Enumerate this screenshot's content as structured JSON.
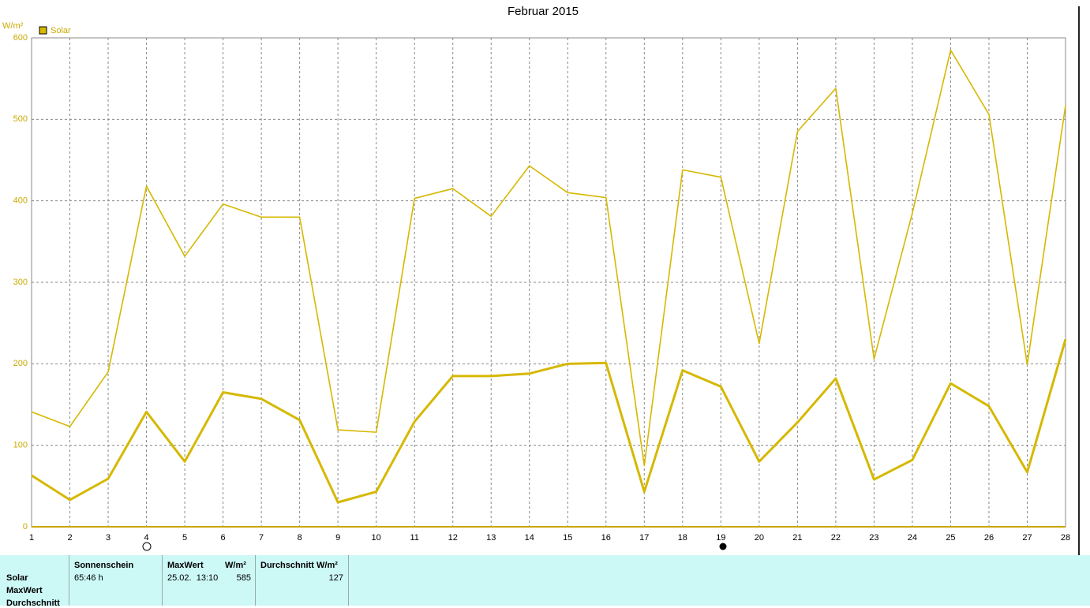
{
  "chart_data": {
    "type": "line",
    "title": "Februar 2015",
    "y_unit": "W/m²",
    "x": [
      1,
      2,
      3,
      4,
      5,
      6,
      7,
      8,
      9,
      10,
      11,
      12,
      13,
      14,
      15,
      16,
      17,
      18,
      19,
      20,
      21,
      22,
      23,
      24,
      25,
      26,
      27,
      28
    ],
    "xlim": [
      1,
      28
    ],
    "xticks": [
      1,
      2,
      3,
      4,
      5,
      6,
      7,
      8,
      9,
      10,
      11,
      12,
      13,
      14,
      15,
      16,
      17,
      18,
      19,
      20,
      21,
      22,
      23,
      24,
      25,
      26,
      27,
      28
    ],
    "ylim": [
      0,
      600
    ],
    "yticks": [
      0,
      100,
      200,
      300,
      400,
      500,
      600
    ],
    "grid": true,
    "series": [
      {
        "name": "Solar",
        "color": "#d6b800",
        "width": 3,
        "values": [
          63,
          33,
          59,
          141,
          80,
          165,
          157,
          131,
          30,
          43,
          129,
          185,
          185,
          188,
          200,
          201,
          43,
          192,
          172,
          80,
          128,
          182,
          58,
          82,
          176,
          148,
          67,
          230
        ]
      },
      {
        "color": "#d6b800",
        "width": 1.6,
        "values": [
          141,
          123,
          190,
          418,
          332,
          396,
          380,
          380,
          119,
          116,
          403,
          415,
          381,
          443,
          410,
          404,
          75,
          438,
          429,
          225,
          485,
          538,
          206,
          385,
          585,
          506,
          199,
          517
        ]
      }
    ]
  },
  "summary": {
    "row_labels": [
      "Solar",
      "MaxWert",
      "Durchschnitt"
    ],
    "sunshine": {
      "header": "Sonnenschein",
      "value": "65:46 h"
    },
    "max": {
      "header": "MaxWert",
      "unit": "W/m²",
      "date": "25.02.  13:10",
      "value": 585
    },
    "avg": {
      "header": "Durchschnitt",
      "unit": "W/m²",
      "value": 127
    }
  }
}
